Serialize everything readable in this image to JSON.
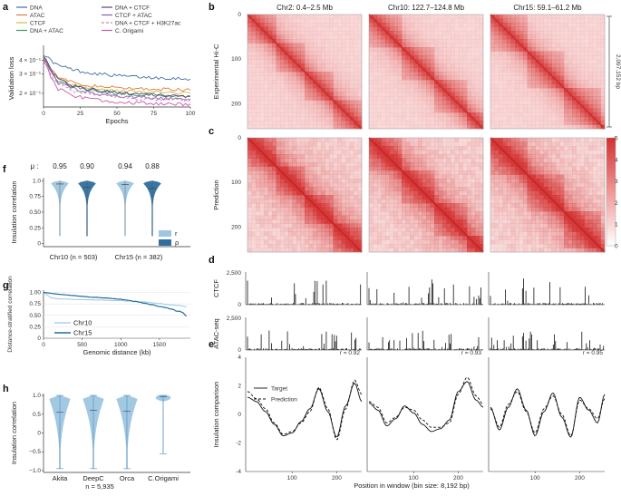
{
  "panels": {
    "a": "a",
    "b": "b",
    "c": "c",
    "d": "d",
    "e": "e",
    "f": "f",
    "g": "g",
    "h": "h"
  },
  "chart_data": [
    {
      "id": "a",
      "type": "line",
      "xlabel": "Epochs",
      "ylabel": "Validation loss",
      "yscale": "log",
      "xlim": [
        0,
        100
      ],
      "ylim": [
        0.15,
        0.5
      ],
      "xticks": [
        0,
        25,
        50,
        75,
        100
      ],
      "yticks": [
        {
          "v": 0.2,
          "label": "2 × 10⁻¹"
        },
        {
          "v": 0.3,
          "label": "3 × 10⁻¹"
        },
        {
          "v": 0.4,
          "label": "4 × 10⁻¹"
        }
      ],
      "series": [
        {
          "name": "DNA",
          "color": "#3d6ea8",
          "dash": "",
          "x": [
            0,
            5,
            10,
            20,
            30,
            40,
            50,
            60,
            70,
            80,
            90,
            100
          ],
          "values": [
            0.46,
            0.4,
            0.36,
            0.33,
            0.31,
            0.3,
            0.29,
            0.285,
            0.28,
            0.278,
            0.275,
            0.272
          ]
        },
        {
          "name": "ATAC",
          "color": "#e07b39",
          "dash": "",
          "x": [
            0,
            5,
            10,
            20,
            30,
            40,
            50,
            60,
            70,
            80,
            90,
            100
          ],
          "values": [
            0.44,
            0.34,
            0.28,
            0.25,
            0.235,
            0.23,
            0.225,
            0.222,
            0.22,
            0.218,
            0.216,
            0.215
          ]
        },
        {
          "name": "CTCF",
          "color": "#d4b84a",
          "dash": "",
          "x": [
            0,
            5,
            10,
            20,
            30,
            40,
            50,
            60,
            70,
            80,
            90,
            100
          ],
          "values": [
            0.42,
            0.33,
            0.27,
            0.24,
            0.225,
            0.215,
            0.21,
            0.207,
            0.205,
            0.203,
            0.201,
            0.2
          ]
        },
        {
          "name": "DNA + ATAC",
          "color": "#3a9a5b",
          "dash": "",
          "x": [
            0,
            5,
            10,
            20,
            30,
            40,
            50,
            60,
            70,
            80,
            90,
            100
          ],
          "values": [
            0.43,
            0.32,
            0.26,
            0.23,
            0.215,
            0.207,
            0.2,
            0.197,
            0.195,
            0.193,
            0.19,
            0.188
          ]
        },
        {
          "name": "DNA + CTCF",
          "color": "#5a3f7a",
          "dash": "",
          "x": [
            0,
            5,
            10,
            20,
            30,
            40,
            50,
            60,
            70,
            80,
            90,
            100
          ],
          "values": [
            0.45,
            0.33,
            0.27,
            0.235,
            0.22,
            0.21,
            0.203,
            0.198,
            0.195,
            0.192,
            0.19,
            0.187
          ]
        },
        {
          "name": "CTCF + ATAC",
          "color": "#8a5db8",
          "dash": "",
          "x": [
            0,
            5,
            10,
            20,
            30,
            40,
            50,
            60,
            70,
            80,
            90,
            100
          ],
          "values": [
            0.42,
            0.31,
            0.25,
            0.22,
            0.205,
            0.195,
            0.19,
            0.186,
            0.183,
            0.18,
            0.178,
            0.176
          ]
        },
        {
          "name": "DNA + CTCF + H3K27ac",
          "color": "#d080a8",
          "dash": "3,2",
          "x": [
            0,
            5,
            10,
            20,
            30,
            40,
            50,
            60,
            70,
            80,
            90,
            100
          ],
          "values": [
            0.41,
            0.3,
            0.24,
            0.21,
            0.198,
            0.19,
            0.185,
            0.18,
            0.177,
            0.175,
            0.173,
            0.171
          ]
        },
        {
          "name": "C. Origami",
          "color": "#c95aa6",
          "dash": "",
          "x": [
            0,
            5,
            10,
            20,
            30,
            40,
            50,
            60,
            70,
            80,
            90,
            100
          ],
          "values": [
            0.4,
            0.28,
            0.22,
            0.19,
            0.18,
            0.173,
            0.168,
            0.165,
            0.163,
            0.161,
            0.16,
            0.158
          ]
        }
      ]
    },
    {
      "id": "b",
      "type": "heatmap",
      "row_title": "Experimental Hi-C",
      "scale_label": "2,097,152 bp",
      "titles": [
        "Chr2: 0.4–2.5 Mb",
        "Chr10: 122.7–124.8 Mb",
        "Chr15: 59.1–61.2 Mb"
      ],
      "axis_ticks": [
        0,
        100,
        200
      ],
      "size_bins": 256
    },
    {
      "id": "c",
      "type": "heatmap",
      "row_title": "Prediction",
      "axis_ticks": [
        0,
        100,
        200
      ],
      "size_bins": 256,
      "colorbar": {
        "min": 0,
        "max": 5,
        "ticks": [
          0,
          1,
          2,
          3,
          4,
          5
        ],
        "colors": [
          "#ffffff",
          "#d32f2f"
        ]
      }
    },
    {
      "id": "d",
      "type": "bar",
      "tracks": [
        {
          "name": "CTCF",
          "ymax": 2500,
          "yticks": [
            "2,500",
            "0"
          ]
        },
        {
          "name": "ATAC-seq",
          "ymax": 2500,
          "yticks": [
            "2,500",
            "0"
          ]
        }
      ]
    },
    {
      "id": "e",
      "type": "line",
      "ylabel": "Insulation comparison",
      "xlabel": "Position in window (bin size: 8,192 bp)",
      "ylim": [
        -4,
        4
      ],
      "yticks": [
        4,
        2,
        0,
        -2,
        -4
      ],
      "xticks": [
        100,
        200
      ],
      "legend": [
        "Target",
        "Prediction"
      ],
      "windows": [
        {
          "r": "r = 0.92",
          "x": [
            0,
            20,
            40,
            60,
            80,
            100,
            120,
            140,
            160,
            180,
            200,
            220,
            240,
            256
          ],
          "target": [
            1.2,
            0.9,
            0.2,
            -0.7,
            -1.5,
            -1.3,
            -0.5,
            0.4,
            1.8,
            0.2,
            -1.6,
            0.6,
            2.2,
            0.9
          ],
          "prediction": [
            1.6,
            1.1,
            0.4,
            -0.6,
            -1.4,
            -1.2,
            -0.6,
            0.2,
            1.9,
            0.4,
            -1.8,
            0.4,
            2.4,
            1.4
          ]
        },
        {
          "r": "r = 0.93",
          "x": [
            0,
            20,
            40,
            60,
            80,
            100,
            120,
            140,
            160,
            180,
            200,
            220,
            240,
            256
          ],
          "target": [
            0.8,
            0.3,
            -0.8,
            -0.3,
            0.6,
            0.1,
            -0.7,
            -1.2,
            -1.0,
            -0.4,
            1.6,
            2.3,
            1.0,
            0.5
          ],
          "prediction": [
            0.9,
            0.5,
            -0.6,
            -0.2,
            0.5,
            0.3,
            -0.4,
            -0.9,
            -0.9,
            -0.6,
            1.4,
            2.6,
            1.3,
            0.7
          ]
        },
        {
          "r": "r = 0.95",
          "x": [
            0,
            20,
            40,
            60,
            80,
            100,
            120,
            140,
            160,
            180,
            200,
            220,
            240,
            256
          ],
          "target": [
            0.5,
            -1.1,
            0.5,
            1.8,
            0.3,
            -1.5,
            0.2,
            1.5,
            -0.2,
            -1.6,
            1.2,
            0.3,
            -0.6,
            1.4
          ],
          "prediction": [
            0.4,
            -0.9,
            0.7,
            1.6,
            0.2,
            -1.3,
            0.4,
            1.3,
            0.0,
            -1.5,
            1.0,
            0.4,
            -0.3,
            1.1
          ]
        }
      ]
    },
    {
      "id": "f",
      "type": "violin",
      "ylabel": "Insulation correlation",
      "ylim": [
        -0.05,
        1.05
      ],
      "yticks": [
        0,
        0.25,
        0.5,
        0.75,
        1.0
      ],
      "ytick_labels": [
        "0",
        "0.25",
        "0.50",
        "0.75",
        "1.0"
      ],
      "mu_symbol": "μ :",
      "mu_values": [
        "0.95",
        "0.90",
        "0.94",
        "0.88"
      ],
      "groups": [
        "Chr10 (n = 503)",
        "Chr15 (n = 382)"
      ],
      "legend": [
        "r",
        "ρ"
      ],
      "colors": [
        "#9ec6e0",
        "#2f6f9e"
      ],
      "medians": [
        0.95,
        0.9,
        0.94,
        0.88
      ]
    },
    {
      "id": "g",
      "type": "line",
      "ylabel": "Distance-stratified correlation",
      "xlabel": "Genomic distance (kb)",
      "xlim": [
        0,
        1900
      ],
      "ylim": [
        0,
        1.05
      ],
      "xticks": [
        0,
        500,
        1000,
        1500
      ],
      "yticks": [
        0,
        0.25,
        0.5,
        0.75,
        1.0
      ],
      "ytick_labels": [
        "0",
        "0.25",
        "0.50",
        "0.75",
        "1.00"
      ],
      "series": [
        {
          "name": "Chr10",
          "color": "#9ec6e0",
          "x": [
            0,
            100,
            200,
            400,
            600,
            800,
            1000,
            1200,
            1400,
            1600,
            1800,
            1850
          ],
          "values": [
            1.0,
            0.88,
            0.86,
            0.85,
            0.84,
            0.83,
            0.82,
            0.8,
            0.78,
            0.74,
            0.7,
            0.68
          ]
        },
        {
          "name": "Chr15",
          "color": "#1f6f9e",
          "x": [
            0,
            100,
            200,
            400,
            600,
            800,
            1000,
            1200,
            1400,
            1600,
            1800,
            1850
          ],
          "values": [
            1.0,
            0.98,
            0.96,
            0.93,
            0.9,
            0.88,
            0.85,
            0.8,
            0.73,
            0.66,
            0.56,
            0.48
          ]
        }
      ]
    },
    {
      "id": "h",
      "type": "violin",
      "ylabel": "Insulation correlation",
      "ylim": [
        -1.05,
        1.05
      ],
      "yticks": [
        1.0,
        0.5,
        0,
        -0.5,
        -1.0
      ],
      "ytick_labels": [
        "1.0",
        "0.5",
        "0",
        "−0.5",
        "−1.0"
      ],
      "categories": [
        "Akita",
        "DeepC",
        "Orca",
        "C.Origami"
      ],
      "medians": [
        0.55,
        0.6,
        0.58,
        0.97
      ],
      "n_label": "n = 5,935",
      "color": "#9ec6e0"
    }
  ]
}
